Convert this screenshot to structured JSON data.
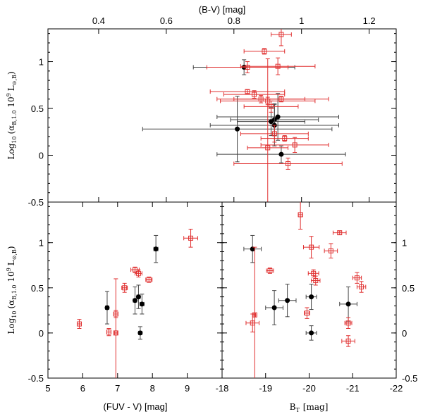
{
  "chart_data": [
    {
      "type": "scatter",
      "panel": "top",
      "xlabel": "(B-V) [mag]",
      "ylabel": "Log10 (αB,1.0 10^9 L⊙,B)",
      "xlim": [
        0.25,
        1.28
      ],
      "ylim": [
        -0.5,
        1.35
      ],
      "xticks": [
        {
          "value": 0.4,
          "label": "0.4"
        },
        {
          "value": 0.6,
          "label": "0.6"
        },
        {
          "value": 0.8,
          "label": "0.8"
        },
        {
          "value": 1.0,
          "label": "1"
        },
        {
          "value": 1.2,
          "label": "1.2"
        }
      ],
      "yticks": [
        {
          "value": -0.5,
          "label": "-0.5"
        },
        {
          "value": 0,
          "label": "0"
        },
        {
          "value": 0.5,
          "label": "0.5"
        },
        {
          "value": 1,
          "label": "1"
        }
      ],
      "series": [
        {
          "marker": "filled-circle",
          "color": "#000000",
          "ecolor": "#444444",
          "points": [
            [
              0.83,
              0.94,
              0.15,
              0.08
            ],
            [
              0.81,
              0.28,
              0.28,
              0.35
            ],
            [
              0.92,
              0.38,
              0.13,
              0.17
            ],
            [
              0.91,
              0.36,
              0.1,
              0.15
            ],
            [
              0.92,
              0.32,
              0.19,
              0.22
            ],
            [
              0.93,
              0.41,
              0.18,
              0.25
            ],
            [
              0.94,
              0.01,
              0.19,
              0.09
            ]
          ]
        },
        {
          "marker": "open-square",
          "color": "#e03030",
          "ecolor": "#e03030",
          "points": [
            [
              0.94,
              1.29,
              0.03,
              0.12
            ],
            [
              0.89,
              1.11,
              0.06,
              0.03
            ],
            [
              0.84,
              0.94,
              0.12,
              0.06
            ],
            [
              0.93,
              0.95,
              0.11,
              0.09
            ],
            [
              0.84,
              0.68,
              0.11,
              0.02
            ],
            [
              0.86,
              0.65,
              0.09,
              0.04
            ],
            [
              0.88,
              0.6,
              0.13,
              0.04
            ],
            [
              0.9,
              0.58,
              0.14,
              0.04
            ],
            [
              0.94,
              0.6,
              0.14,
              0.03
            ],
            [
              0.91,
              0.52,
              0.08,
              0.06
            ],
            [
              0.92,
              0.23,
              0.1,
              0.09
            ],
            [
              0.98,
              0.11,
              0.1,
              0.08
            ],
            [
              0.96,
              -0.09,
              0.16,
              0.06
            ],
            [
              0.95,
              0.18,
              0.07,
              0.03
            ],
            [
              0.9,
              0.08,
              0.06,
              0.95
            ]
          ]
        }
      ]
    },
    {
      "type": "scatter",
      "panel": "bottom-left",
      "xlabel": "(FUV - V) [mag]",
      "ylabel": "Log10 (αB,1.0 10^9 L⊙,B)",
      "xlim": [
        5,
        10
      ],
      "ylim": [
        -0.5,
        1.45
      ],
      "xticks": [
        {
          "value": 5,
          "label": "5"
        },
        {
          "value": 6,
          "label": "6"
        },
        {
          "value": 7,
          "label": "7"
        },
        {
          "value": 8,
          "label": "8"
        },
        {
          "value": 9,
          "label": "9"
        }
      ],
      "yticks": [
        {
          "value": -0.5,
          "label": "-0.5"
        },
        {
          "value": 0,
          "label": "0"
        },
        {
          "value": 0.5,
          "label": "0.5"
        },
        {
          "value": 1,
          "label": "1"
        }
      ],
      "series": [
        {
          "marker": "filled-circle",
          "color": "#000000",
          "ecolor": "#444444",
          "points": [
            [
              8.1,
              0.93,
              0.06,
              0.15
            ],
            [
              6.7,
              0.28,
              0.05,
              0.18
            ],
            [
              7.5,
              0.36,
              0.05,
              0.15
            ],
            [
              7.6,
              0.4,
              0.05,
              0.13
            ],
            [
              7.7,
              0.32,
              0.06,
              0.11
            ],
            [
              7.65,
              0.0,
              0.05,
              0.07
            ]
          ]
        },
        {
          "marker": "open-square",
          "color": "#e03030",
          "ecolor": "#e03030",
          "points": [
            [
              9.1,
              1.05,
              0.2,
              0.1
            ],
            [
              7.5,
              0.7,
              0.12,
              0.03
            ],
            [
              7.6,
              0.66,
              0.1,
              0.04
            ],
            [
              7.2,
              0.5,
              0.08,
              0.05
            ],
            [
              7.9,
              0.59,
              0.09,
              0.03
            ],
            [
              5.9,
              0.1,
              0.06,
              0.05
            ],
            [
              6.75,
              0.01,
              0.06,
              0.04
            ],
            [
              6.95,
              0.21,
              0.06,
              0.04
            ],
            [
              6.95,
              0.0,
              0.04,
              0.6
            ]
          ]
        }
      ]
    },
    {
      "type": "scatter",
      "panel": "bottom-right",
      "xlabel": "BT [mag]",
      "ylabel": "",
      "xlim": [
        -18,
        -22
      ],
      "ylim": [
        -0.5,
        1.45
      ],
      "xticks": [
        {
          "value": -18,
          "label": "-18"
        },
        {
          "value": -19,
          "label": "-19"
        },
        {
          "value": -20,
          "label": "-20"
        },
        {
          "value": -21,
          "label": "-21"
        },
        {
          "value": -22,
          "label": "-22"
        }
      ],
      "yticks": [
        {
          "value": -0.5,
          "label": "-0.5"
        },
        {
          "value": 0,
          "label": "0"
        },
        {
          "value": 0.5,
          "label": "0.5"
        },
        {
          "value": 1,
          "label": "1"
        }
      ],
      "series": [
        {
          "marker": "filled-circle",
          "color": "#000000",
          "ecolor": "#444444",
          "points": [
            [
              -18.7,
              0.93,
              0.2,
              0.15
            ],
            [
              -19.2,
              0.28,
              0.2,
              0.19
            ],
            [
              -19.5,
              0.36,
              0.2,
              0.18
            ],
            [
              -20.05,
              0.4,
              0.12,
              0.14
            ],
            [
              -20.05,
              0.0,
              0.12,
              0.08
            ],
            [
              -20.9,
              0.32,
              0.2,
              0.19
            ]
          ]
        },
        {
          "marker": "open-square",
          "color": "#e03030",
          "ecolor": "#e03030",
          "points": [
            [
              -19.8,
              1.31,
              0.05,
              0.16
            ],
            [
              -20.7,
              1.11,
              0.15,
              0.02
            ],
            [
              -20.05,
              0.95,
              0.18,
              0.12
            ],
            [
              -20.5,
              0.91,
              0.15,
              0.08
            ],
            [
              -19.1,
              0.69,
              0.08,
              0.03
            ],
            [
              -20.1,
              0.66,
              0.12,
              0.04
            ],
            [
              -21.1,
              0.61,
              0.1,
              0.06
            ],
            [
              -20.15,
              0.58,
              0.1,
              0.05
            ],
            [
              -21.2,
              0.51,
              0.1,
              0.06
            ],
            [
              -20.9,
              0.11,
              0.08,
              0.06
            ],
            [
              -20.9,
              -0.09,
              0.15,
              0.06
            ],
            [
              -19.95,
              0.22,
              0.06,
              0.06
            ],
            [
              -18.7,
              0.11,
              0.15,
              0.1
            ],
            [
              -18.75,
              0.2,
              0.02,
              0.75
            ]
          ]
        }
      ]
    }
  ],
  "labels": {
    "top_xlabel": "(B-V) [mag]",
    "bottom_left_xlabel": "(FUV - V) [mag]",
    "bottom_right_xlabel_main": "B",
    "bottom_right_xlabel_sub": "T",
    "bottom_right_xlabel_unit": "[mag]",
    "ylabel_prefix": "Log",
    "ylabel_log_sub": "10",
    "ylabel_alpha": "(α",
    "ylabel_alpha_sub": "B,1.0",
    "ylabel_mid": "10",
    "ylabel_exp": "9",
    "ylabel_L": "L",
    "ylabel_L_sub": "⊙,B",
    "ylabel_close": ")"
  }
}
